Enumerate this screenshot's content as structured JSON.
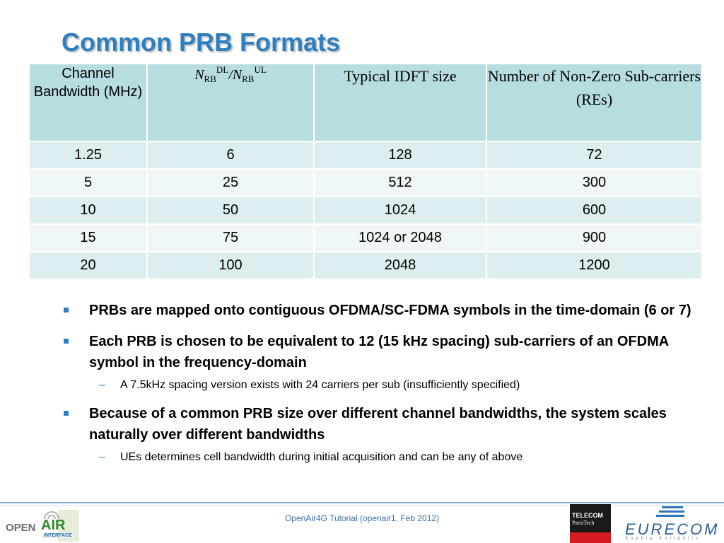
{
  "slide": {
    "title": "Common PRB Formats"
  },
  "table": {
    "headers": {
      "col1": "Channel Bandwidth (MHz)",
      "col2": {
        "n": "N",
        "sub": "RB",
        "sup_dl": "DL",
        "sep": "/",
        "sup_ul": "UL"
      },
      "col3": "Typical IDFT size",
      "col4": "Number of  Non-Zero Sub-carriers (REs)"
    },
    "rows": [
      [
        "1.25",
        "6",
        "128",
        "72"
      ],
      [
        "5",
        "25",
        "512",
        "300"
      ],
      [
        "10",
        "50",
        "1024",
        "600"
      ],
      [
        "15",
        "75",
        "1024 or 2048",
        "900"
      ],
      [
        "20",
        "100",
        "2048",
        "1200"
      ]
    ]
  },
  "bullets": [
    {
      "text": "PRBs are mapped onto contiguous OFDMA/SC-FDMA symbols in the time-domain (6 or 7)",
      "subs": []
    },
    {
      "text": "Each PRB is chosen to be equivalent to 12 (15 kHz spacing) sub-carriers of an OFDMA symbol in the frequency-domain",
      "subs": [
        "A 7.5kHz spacing version exists with 24 carriers per sub (insufficiently specified)"
      ]
    },
    {
      "text": "Because of a common PRB size over different channel bandwidths, the system scales naturally over different bandwidths",
      "subs": [
        "UEs determines cell bandwidth during initial acquisition and can be any of above"
      ]
    }
  ],
  "footer": {
    "caption": "OpenAir4G Tutorial (openair1, Feb 2012)",
    "logo_left": {
      "open": "OPEN",
      "air": "AIR",
      "interface": "INTERFACE"
    },
    "logo_mid": {
      "line1": "TELECOM",
      "line2": "ParisTech"
    },
    "logo_right": {
      "word": "EURECOM",
      "sub": "Sophia Antipolis"
    }
  },
  "colors": {
    "title": "#2e7fc0",
    "header_bg": "#b7dde1",
    "row_odd": "#dceeef",
    "row_even": "#eef6f7",
    "bullet": "#2e7fc0"
  }
}
